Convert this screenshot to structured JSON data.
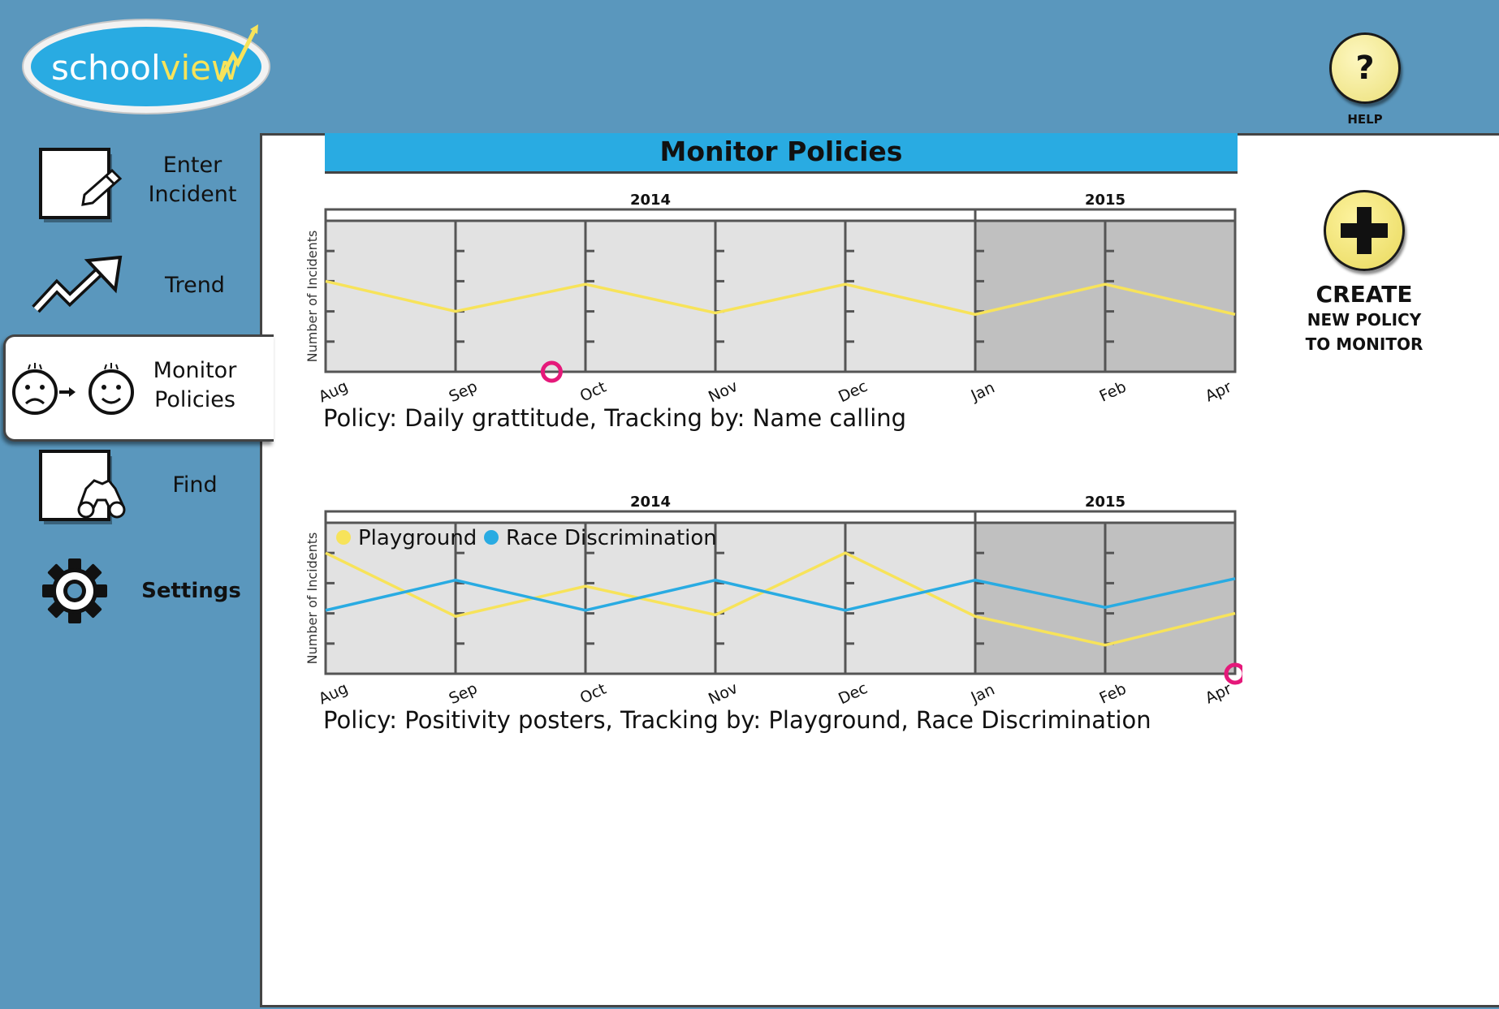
{
  "app": {
    "logo_text_a": "school",
    "logo_text_b": "view",
    "help_label": "HELP",
    "help_glyph": "?"
  },
  "sidebar": {
    "items": [
      {
        "id": "enter-incident",
        "label_line1": "Enter",
        "label_line2": "Incident",
        "icon": "pencil-note-icon"
      },
      {
        "id": "trend",
        "label": "Trend",
        "icon": "trend-arrow-icon"
      },
      {
        "id": "monitor-policies",
        "label_line1": "Monitor",
        "label_line2": "Policies",
        "icon": "sad-to-happy-icon",
        "active": true
      },
      {
        "id": "find",
        "label": "Find",
        "icon": "binoculars-icon"
      },
      {
        "id": "settings",
        "label": "Settings",
        "icon": "gear-icon"
      }
    ]
  },
  "main": {
    "title": "Monitor Policies",
    "create": {
      "line1": "CREATE",
      "line2": "NEW POLICY",
      "line3": "TO MONITOR"
    }
  },
  "colors": {
    "background": "#5a97bd",
    "title_bar": "#29abe2",
    "yellow_series": "#f7e35a",
    "blue_series": "#29abe2",
    "marker": "#e5197a",
    "plot_light": "#e2e2e2",
    "plot_dark": "#c0c0c0"
  },
  "chart_data": [
    {
      "type": "line",
      "title": "Policy: Daily grattitude, Tracking by: Name calling",
      "years": [
        {
          "label": "2014",
          "from": "Aug",
          "to": "Dec"
        },
        {
          "label": "2015",
          "from": "Jan",
          "to": "Apr"
        }
      ],
      "x": [
        "Aug",
        "Sep",
        "Oct",
        "Nov",
        "Dec",
        "Jan",
        "Feb",
        "Apr"
      ],
      "ylabel": "Number of Incidents",
      "ylim": [
        0,
        5
      ],
      "legend": [],
      "series": [
        {
          "color": "#f7e35a",
          "values": [
            3.0,
            2.0,
            2.9,
            1.95,
            2.9,
            1.9,
            2.9,
            1.9
          ]
        }
      ],
      "marker": {
        "x": "Sep",
        "offset": 0.74,
        "value": 0
      }
    },
    {
      "type": "line",
      "title": "Policy: Positivity posters, Tracking by: Playground, Race Discrimination",
      "years": [
        {
          "label": "2014",
          "from": "Aug",
          "to": "Dec"
        },
        {
          "label": "2015",
          "from": "Jan",
          "to": "Apr"
        }
      ],
      "x": [
        "Aug",
        "Sep",
        "Oct",
        "Nov",
        "Dec",
        "Jan",
        "Feb",
        "Apr"
      ],
      "ylabel": "Number of Incidents",
      "ylim": [
        0,
        5
      ],
      "legend": [
        "Playground",
        "Race Discrimination"
      ],
      "series": [
        {
          "name": "Playground",
          "color": "#f7e35a",
          "values": [
            4.0,
            1.9,
            2.9,
            1.95,
            4.0,
            1.9,
            0.95,
            2.0
          ]
        },
        {
          "name": "Race Discrimination",
          "color": "#29abe2",
          "values": [
            2.1,
            3.1,
            2.1,
            3.1,
            2.1,
            3.1,
            2.2,
            3.15
          ]
        }
      ],
      "marker": {
        "x": "Apr",
        "offset": 0,
        "value": 0
      }
    }
  ]
}
